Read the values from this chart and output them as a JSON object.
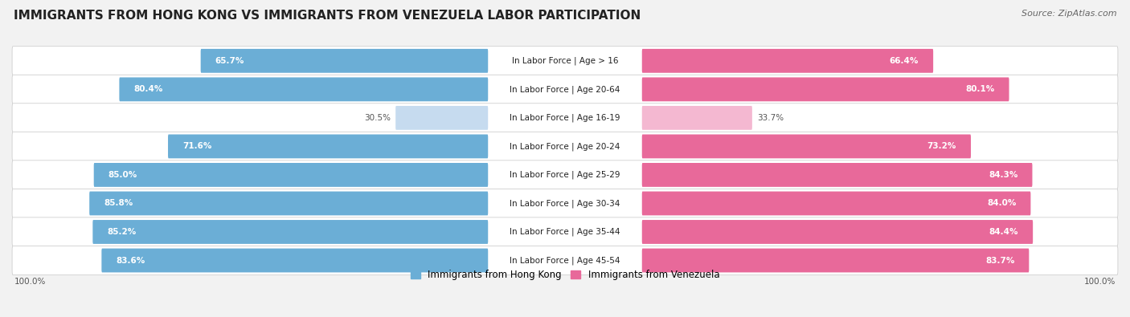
{
  "title": "IMMIGRANTS FROM HONG KONG VS IMMIGRANTS FROM VENEZUELA LABOR PARTICIPATION",
  "source": "Source: ZipAtlas.com",
  "categories": [
    "In Labor Force | Age > 16",
    "In Labor Force | Age 20-64",
    "In Labor Force | Age 16-19",
    "In Labor Force | Age 20-24",
    "In Labor Force | Age 25-29",
    "In Labor Force | Age 30-34",
    "In Labor Force | Age 35-44",
    "In Labor Force | Age 45-54"
  ],
  "hong_kong_values": [
    65.7,
    80.4,
    30.5,
    71.6,
    85.0,
    85.8,
    85.2,
    83.6
  ],
  "venezuela_values": [
    66.4,
    80.1,
    33.7,
    73.2,
    84.3,
    84.0,
    84.4,
    83.7
  ],
  "hong_kong_color": "#6baed6",
  "hong_kong_color_light": "#c6dbef",
  "venezuela_color": "#e8699a",
  "venezuela_color_light": "#f4b8d1",
  "bg_color": "#f2f2f2",
  "row_bg_color": "#ffffff",
  "row_border_color": "#d0d0d0",
  "max_value": 100.0,
  "legend_hk": "Immigrants from Hong Kong",
  "legend_ven": "Immigrants from Venezuela",
  "title_fontsize": 11,
  "source_fontsize": 8,
  "label_fontsize": 7.5,
  "val_fontsize": 7.5,
  "legend_fontsize": 8.5
}
